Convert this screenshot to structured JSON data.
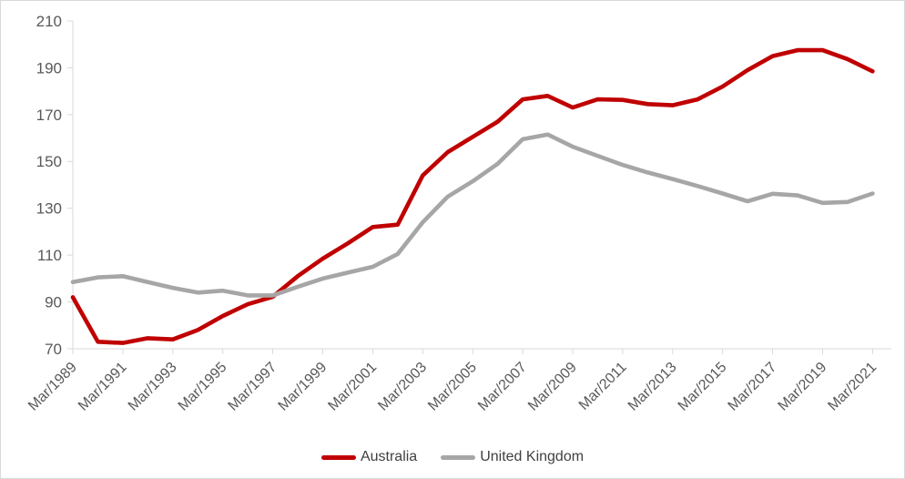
{
  "chart_data": {
    "type": "line",
    "title": "",
    "xlabel": "",
    "ylabel": "",
    "x": [
      1989,
      1990,
      1991,
      1992,
      1993,
      1994,
      1995,
      1996,
      1997,
      1998,
      1999,
      2000,
      2001,
      2002,
      2003,
      2004,
      2005,
      2006,
      2007,
      2008,
      2009,
      2010,
      2011,
      2012,
      2013,
      2014,
      2015,
      2016,
      2017,
      2018,
      2019,
      2020,
      2021
    ],
    "x_tick_labels": [
      "Mar/1989",
      "Mar/1991",
      "Mar/1993",
      "Mar/1995",
      "Mar/1997",
      "Mar/1999",
      "Mar/2001",
      "Mar/2003",
      "Mar/2005",
      "Mar/2007",
      "Mar/2009",
      "Mar/2011",
      "Mar/2013",
      "Mar/2015",
      "Mar/2017",
      "Mar/2019",
      "Mar/2021"
    ],
    "yticks": [
      70,
      90,
      110,
      130,
      150,
      170,
      190,
      210
    ],
    "ylim": [
      70,
      210
    ],
    "grid": false,
    "legend_position": "bottom-center",
    "series": [
      {
        "name": "Australia",
        "color": "#c00000",
        "values": [
          92,
          73,
          72.5,
          74.5,
          74,
          78,
          84,
          89,
          92.2,
          101,
          108.5,
          115,
          122,
          123,
          144,
          154,
          160.5,
          167,
          176.5,
          178,
          173,
          176.5,
          176.3,
          174.5,
          174,
          176.5,
          182,
          189,
          195,
          197.5,
          197.5,
          193.7,
          188.5
        ]
      },
      {
        "name": "United Kingdom",
        "color": "#a6a6a6",
        "values": [
          98.5,
          100.5,
          101,
          98.5,
          96,
          94,
          94.8,
          92.8,
          92.8,
          96.5,
          100,
          102.5,
          105,
          110.5,
          124,
          135,
          141.5,
          149,
          159.5,
          161.5,
          156.3,
          152.4,
          148.5,
          145.3,
          142.5,
          139.5,
          136.3,
          133,
          136.2,
          135.5,
          132.3,
          132.7,
          136.3
        ]
      }
    ],
    "axis_colors": {
      "line": "#d9d9d9",
      "tick": "#d9d9d9",
      "label": "#595959"
    }
  },
  "legend": {
    "items": [
      {
        "label": "Australia"
      },
      {
        "label": "United Kingdom"
      }
    ]
  }
}
